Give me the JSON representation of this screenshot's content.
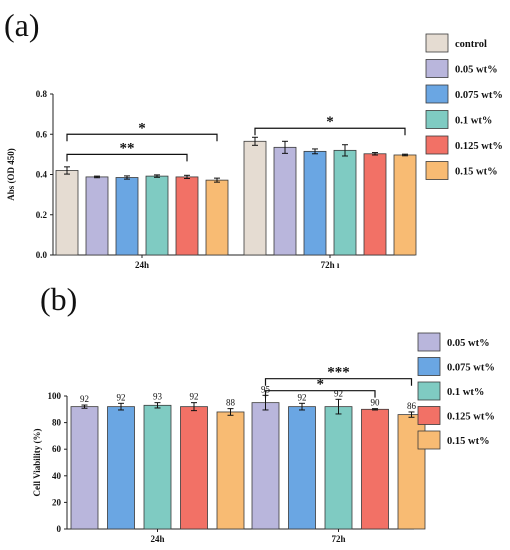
{
  "panel_labels": [
    "(a)",
    "(b)"
  ],
  "colors": {
    "control": "#e5dcd2",
    "0.05 wt%": "#b9b6dc",
    "0.075 wt%": "#6aa6e3",
    "0.1 wt%": "#7fcbc2",
    "0.125 wt%": "#f27166",
    "0.15 wt%": "#f8bb73"
  },
  "chart_data": [
    {
      "type": "bar",
      "panel": "(a)",
      "ylabel": "Abs (OD 450)",
      "xlabel": "",
      "ylim": [
        0,
        0.8
      ],
      "yticks": [
        "0.0",
        "0.2",
        "0.4",
        "0.6",
        "0.8"
      ],
      "categories": [
        "24h",
        "72h"
      ],
      "category_labels": [
        "24h",
        "72h ı"
      ],
      "legend": [
        "control",
        "0.05 wt%",
        "0.075 wt%",
        "0.1 wt%",
        "0.125 wt%",
        "0.15 wt%"
      ],
      "legend_position": "right",
      "series": [
        {
          "name": "control",
          "values": [
            0.42,
            0.565
          ],
          "errors": [
            0.018,
            0.02
          ]
        },
        {
          "name": "0.05 wt%",
          "values": [
            0.388,
            0.535
          ],
          "errors": [
            0.004,
            0.03
          ]
        },
        {
          "name": "0.075 wt%",
          "values": [
            0.385,
            0.515
          ],
          "errors": [
            0.008,
            0.012
          ]
        },
        {
          "name": "0.1 wt%",
          "values": [
            0.392,
            0.52
          ],
          "errors": [
            0.006,
            0.028
          ]
        },
        {
          "name": "0.125 wt%",
          "values": [
            0.388,
            0.503
          ],
          "errors": [
            0.008,
            0.006
          ]
        },
        {
          "name": "0.15 wt%",
          "values": [
            0.372,
            0.497
          ],
          "errors": [
            0.01,
            0.004
          ]
        }
      ],
      "annotations": [
        {
          "text": "*",
          "group": 0,
          "from": 0,
          "to": 5,
          "level": 0.6
        },
        {
          "text": "**",
          "group": 0,
          "from": 0,
          "to": 4,
          "level": 0.5
        },
        {
          "text": "*",
          "group": 1,
          "from": 0,
          "to": 5,
          "level": 0.63
        }
      ]
    },
    {
      "type": "bar",
      "panel": "(b)",
      "ylabel": "Cell Viability (%)",
      "xlabel": "",
      "ylim": [
        0,
        100
      ],
      "yticks": [
        "0",
        "20",
        "40",
        "60",
        "80",
        "100"
      ],
      "categories": [
        "24h",
        "72h"
      ],
      "category_labels": [
        "24h",
        "72h"
      ],
      "legend": [
        "0.05 wt%",
        "0.075 wt%",
        "0.1 wt%",
        "0.125 wt%",
        "0.15 wt%"
      ],
      "legend_position": "right",
      "series": [
        {
          "name": "0.05 wt%",
          "values": [
            92,
            95
          ],
          "errors": [
            1.2,
            5.5
          ],
          "labels": [
            "92",
            "95"
          ]
        },
        {
          "name": "0.075 wt%",
          "values": [
            92,
            92
          ],
          "errors": [
            2.5,
            2.5
          ],
          "labels": [
            "92",
            "92"
          ]
        },
        {
          "name": "0.1 wt%",
          "values": [
            93,
            92
          ],
          "errors": [
            2.0,
            5.5
          ],
          "labels": [
            "93",
            "92"
          ]
        },
        {
          "name": "0.125 wt%",
          "values": [
            92,
            90
          ],
          "errors": [
            3.0,
            0.5
          ],
          "labels": [
            "92",
            "90"
          ]
        },
        {
          "name": "0.15 wt%",
          "values": [
            88,
            86
          ],
          "errors": [
            2.5,
            2.0
          ],
          "labels": [
            "88",
            "86"
          ]
        }
      ],
      "annotations": [
        {
          "text": "***",
          "group": 1,
          "from": 0,
          "to": 4,
          "level": 113
        },
        {
          "text": "*",
          "group": 1,
          "from": 0,
          "to": 3,
          "level": 104
        }
      ]
    }
  ]
}
